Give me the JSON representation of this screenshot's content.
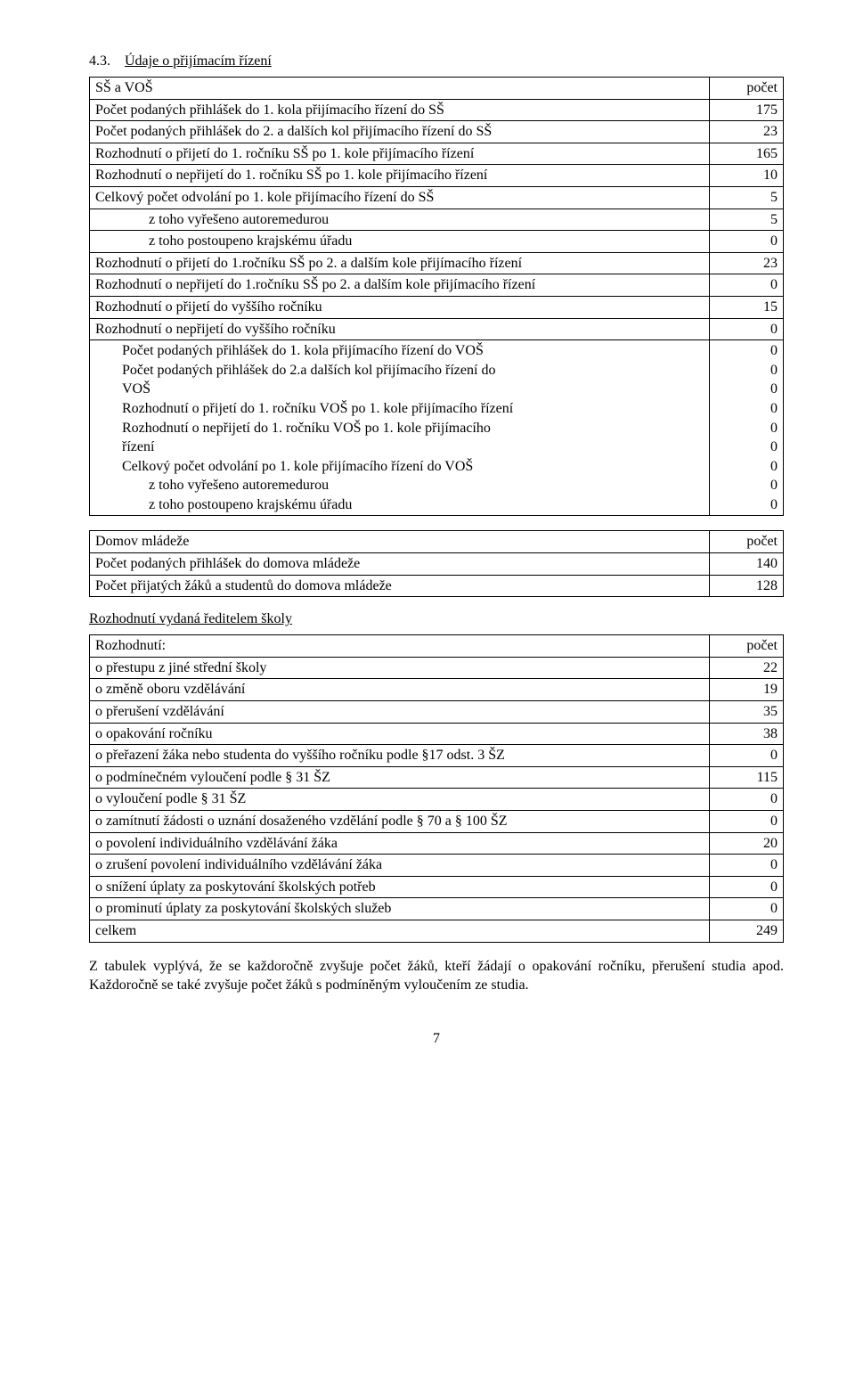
{
  "section": {
    "number": "4.3.",
    "title": "Údaje o přijímacím řízení"
  },
  "table1": {
    "header": {
      "left": "SŠ a VOŠ",
      "right": "počet"
    },
    "rows": [
      {
        "label": "Počet podaných přihlášek do 1. kola přijímacího řízení do SŠ",
        "value": "175"
      },
      {
        "label": "Počet podaných přihlášek do 2. a dalších kol přijímacího řízení do SŠ",
        "value": "23"
      },
      {
        "label": "Rozhodnutí o přijetí do 1. ročníku SŠ po 1. kole přijímacího řízení",
        "value": "165"
      },
      {
        "label": "Rozhodnutí o nepřijetí do 1. ročníku SŠ po 1. kole přijímacího řízení",
        "value": "10"
      },
      {
        "label": "Celkový počet odvolání po 1. kole přijímacího řízení do SŠ",
        "value": "5"
      },
      {
        "label": "z toho vyřešeno autoremedurou",
        "value": "5",
        "indent": 2
      },
      {
        "label": "z toho postoupeno krajskému úřadu",
        "value": "0",
        "indent": 2
      },
      {
        "label": "Rozhodnutí o přijetí do 1.ročníku SŠ po 2. a dalším kole přijímacího řízení",
        "value": "23"
      },
      {
        "label": "Rozhodnutí o nepřijetí do 1.ročníku SŠ po 2. a dalším kole přijímacího řízení",
        "value": "0"
      },
      {
        "label": "Rozhodnutí o přijetí do vyššího ročníku",
        "value": "15"
      },
      {
        "label": "Rozhodnutí o nepřijetí do vyššího ročníku",
        "value": "0"
      },
      {
        "label": "Počet podaných přihlášek do 1. kola přijímacího řízení do VOŠ",
        "value": "0",
        "indent": 1
      },
      {
        "label": "Počet podaných přihlášek do 2.a dalších kol přijímacího řízení do",
        "value": "0",
        "indent": 1
      },
      {
        "label": "VOŠ",
        "value": "0",
        "indent": 1
      },
      {
        "label": "Rozhodnutí o přijetí do 1. ročníku VOŠ po 1. kole přijímacího řízení",
        "value": "0",
        "indent": 1
      },
      {
        "label": "Rozhodnutí o nepřijetí do 1. ročníku VOŠ po 1. kole přijímacího",
        "value": "0",
        "indent": 1
      },
      {
        "label": "řízení",
        "value": "0",
        "indent": 1
      },
      {
        "label": "Celkový počet odvolání po 1. kole přijímacího řízení do VOŠ",
        "value": "0",
        "indent": 1
      },
      {
        "label": "z toho vyřešeno autoremedurou",
        "value": "0",
        "indent": 2
      },
      {
        "label": "z toho postoupeno krajskému úřadu",
        "value": "0",
        "indent": 2
      }
    ]
  },
  "table2": {
    "header": {
      "left": "Domov mládeže",
      "right": "počet"
    },
    "rows": [
      {
        "label": "Počet podaných přihlášek do domova mládeže",
        "value": "140"
      },
      {
        "label": "Počet přijatých žáků a studentů do domova mládeže",
        "value": "128"
      }
    ]
  },
  "subheading": "Rozhodnutí vydaná ředitelem školy",
  "table3": {
    "header": {
      "left": "Rozhodnutí:",
      "right": "počet"
    },
    "rows": [
      {
        "label": "o přestupu z jiné střední školy",
        "value": "22"
      },
      {
        "label": "o změně oboru vzdělávání",
        "value": "19"
      },
      {
        "label": "o přerušení vzdělávání",
        "value": "35"
      },
      {
        "label": "o opakování ročníku",
        "value": "38"
      },
      {
        "label": "o přeřazení žáka nebo studenta do vyššího ročníku podle §17 odst. 3 ŠZ",
        "value": "0"
      },
      {
        "label": "o podmínečném vyloučení podle § 31 ŠZ",
        "value": "115"
      },
      {
        "label": "o vyloučení podle § 31 ŠZ",
        "value": "0"
      },
      {
        "label": "o zamítnutí žádosti o uznání dosaženého vzdělání podle § 70 a § 100 ŠZ",
        "value": "0"
      },
      {
        "label": "o povolení individuálního vzdělávání žáka",
        "value": "20"
      },
      {
        "label": "o zrušení povolení individuálního vzdělávání žáka",
        "value": "0"
      },
      {
        "label": "o snížení úplaty za poskytování školských potřeb",
        "value": "0"
      },
      {
        "label": "o prominutí úplaty za poskytování školských služeb",
        "value": "0"
      },
      {
        "label": "celkem",
        "value": "249"
      }
    ]
  },
  "paragraph": "Z tabulek vyplývá, že se každoročně zvyšuje počet žáků, kteří žádají o opakování ročníku, přerušení studia apod. Každoročně se také zvyšuje počet žáků s podmíněným vyloučením ze studia.",
  "pagenum": "7"
}
